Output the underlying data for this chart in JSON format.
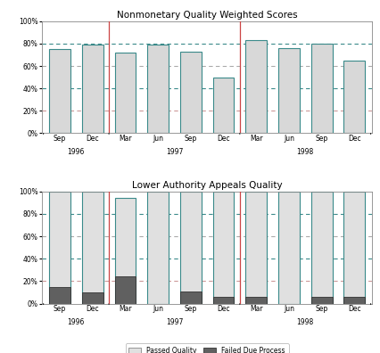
{
  "title1": "Nonmonetary Quality Weighted Scores",
  "title2": "Lower Authority Appeals Quality",
  "categories": [
    "Sep",
    "Dec",
    "Mar",
    "Jun",
    "Sep",
    "Dec",
    "Mar",
    "Jun",
    "Sep",
    "Dec"
  ],
  "nmq_values": [
    75,
    79,
    72,
    79,
    73,
    50,
    83,
    76,
    80,
    65
  ],
  "laa_passed": [
    100,
    100,
    94,
    100,
    100,
    100,
    100,
    100,
    100,
    100
  ],
  "laa_failed": [
    15,
    10,
    24,
    0,
    11,
    6,
    6,
    0,
    6,
    6
  ],
  "bar_color_light": "#d8d8d8",
  "bar_color_dark": "#606060",
  "bar_edge_teal": "#3a8a8a",
  "bar_edge_dark": "#333333",
  "hlines": [
    {
      "y": 80,
      "color": "#3a8a8a",
      "lw": 0.8
    },
    {
      "y": 60,
      "color": "#aaaaaa",
      "lw": 0.8
    },
    {
      "y": 40,
      "color": "#3a8a8a",
      "lw": 0.8
    },
    {
      "y": 20,
      "color": "#cc9999",
      "lw": 0.8
    }
  ],
  "year_sep_color": "#cc4444",
  "year_sep_lw": 0.9,
  "year_groups": [
    {
      "label": "1996",
      "start": 0,
      "end": 1
    },
    {
      "label": "1997",
      "start": 2,
      "end": 5
    },
    {
      "label": "1998",
      "start": 6,
      "end": 9
    }
  ],
  "legend_passed_color": "#e0e0e0",
  "legend_failed_color": "#606060",
  "bar_width": 0.65,
  "figsize": [
    4.26,
    3.96
  ],
  "dpi": 100
}
